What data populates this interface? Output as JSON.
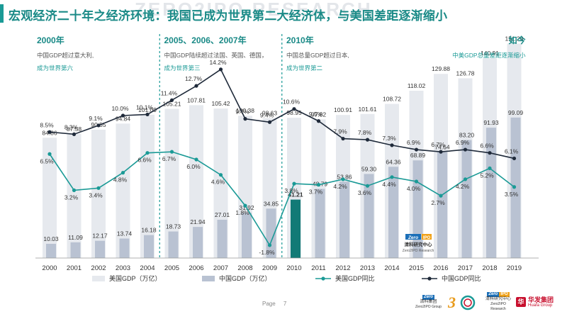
{
  "page": {
    "title": "宏观经济二十年之经济环境：我国已成为世界第二大经济体，与美国差距逐渐缩小",
    "watermark": "ZERO2IPO RESEARCH",
    "page_label": "Page",
    "page_number": "7"
  },
  "annotations": [
    {
      "period": "2000年",
      "line1": "中国GDP超过意大利,",
      "line2": "成为世界第六",
      "x_index": 0
    },
    {
      "period": "2005、2006、2007年",
      "line1": "中国GDP陆续超过法国、英国、德国，",
      "line2": "成为世界第三",
      "x_index": 5
    },
    {
      "period": "2010年",
      "line1": "中国总量GDP超过日本,",
      "line2": "成为世界第二",
      "x_index": 10
    },
    {
      "period": "如今",
      "line1": "中美GDP总量差距逐渐缩小",
      "line2": "",
      "x_index": 19
    }
  ],
  "in_chart_logo": {
    "badge": "Zero",
    "badge2": "IPO",
    "name": "清科研究中心",
    "en": "Zero2IPO Research"
  },
  "footer_logos": {
    "zero_name": "清科集团",
    "zero_en": "Zero2IPO Group",
    "research_name": "清科研究中心",
    "research_en": "Zero2IPO Research",
    "huafa_mark": "华",
    "huafa_name": "华发集团",
    "huafa_en": "Huafa Group"
  },
  "chart_data": {
    "type": "bar",
    "title": "",
    "categories": [
      "2000",
      "2001",
      "2002",
      "2003",
      "2004",
      "2005",
      "2006",
      "2007",
      "2008",
      "2009",
      "2010",
      "2011",
      "2012",
      "2013",
      "2014",
      "2015",
      "2016",
      "2017",
      "2018",
      "2019"
    ],
    "series": [
      {
        "name": "美国GDP（万亿）",
        "kind": "bar",
        "color": "#e6e9ee",
        "values": [
          84.86,
          87.58,
          90.55,
          94.84,
          101.09,
          105.21,
          107.81,
          105.42,
          100.38,
          98.63,
          98.95,
          97.82,
          100.91,
          101.61,
          108.72,
          118.02,
          129.88,
          126.78,
          140.91,
          151.26
        ]
      },
      {
        "name": "中国GDP（万亿）",
        "kind": "bar",
        "color": "#b9c2d2",
        "values": [
          10.03,
          11.09,
          12.17,
          13.74,
          16.18,
          18.73,
          21.94,
          27.01,
          31.92,
          34.85,
          41.21,
          48.79,
          53.86,
          59.3,
          64.36,
          68.89,
          74.64,
          83.2,
          91.93,
          99.09
        ]
      },
      {
        "name": "美国GDP同比",
        "kind": "line",
        "color": "#1a9a96",
        "values": [
          6.5,
          3.2,
          3.4,
          4.8,
          6.6,
          6.7,
          6.0,
          4.6,
          1.8,
          -1.8,
          3.8,
          3.7,
          4.2,
          3.6,
          4.4,
          4.0,
          2.7,
          4.2,
          5.2,
          3.5
        ],
        "labels": [
          "6.5%",
          "3.2%",
          "3.4%",
          "4.8%",
          "6.6%",
          "6.7%",
          "6.0%",
          "4.6%",
          "1.8%",
          "-1.8%",
          "3.8%",
          "3.7%",
          "4.2%",
          "3.6%",
          "4.4%",
          "4.0%",
          "2.7%",
          "4.2%",
          "5.2%",
          "3.5%"
        ]
      },
      {
        "name": "中国GDP同比",
        "kind": "line",
        "color": "#1f2a3a",
        "values": [
          8.5,
          8.3,
          9.1,
          10.0,
          10.1,
          11.4,
          12.7,
          14.2,
          9.7,
          9.4,
          10.6,
          9.5,
          7.9,
          7.8,
          7.3,
          6.9,
          6.7,
          6.9,
          6.6,
          6.1
        ],
        "labels": [
          "8.5%",
          "8.3%",
          "9.1%",
          "10.0%",
          "10.1%",
          "11.4%",
          "12.7%",
          "14.2%",
          "9.7%",
          "9.4%",
          "10.6%",
          "9.5%",
          "7.9%",
          "7.8%",
          "7.3%",
          "6.9%",
          "6.7%",
          "6.9%",
          "6.6%",
          "6.1%"
        ]
      }
    ],
    "highlight": {
      "category": "2010",
      "series": "中国GDP（万亿）",
      "color": "#127a76"
    },
    "legend_position": "bottom",
    "grid": false,
    "dividers_after_categories": [
      "2004",
      "2009"
    ]
  }
}
